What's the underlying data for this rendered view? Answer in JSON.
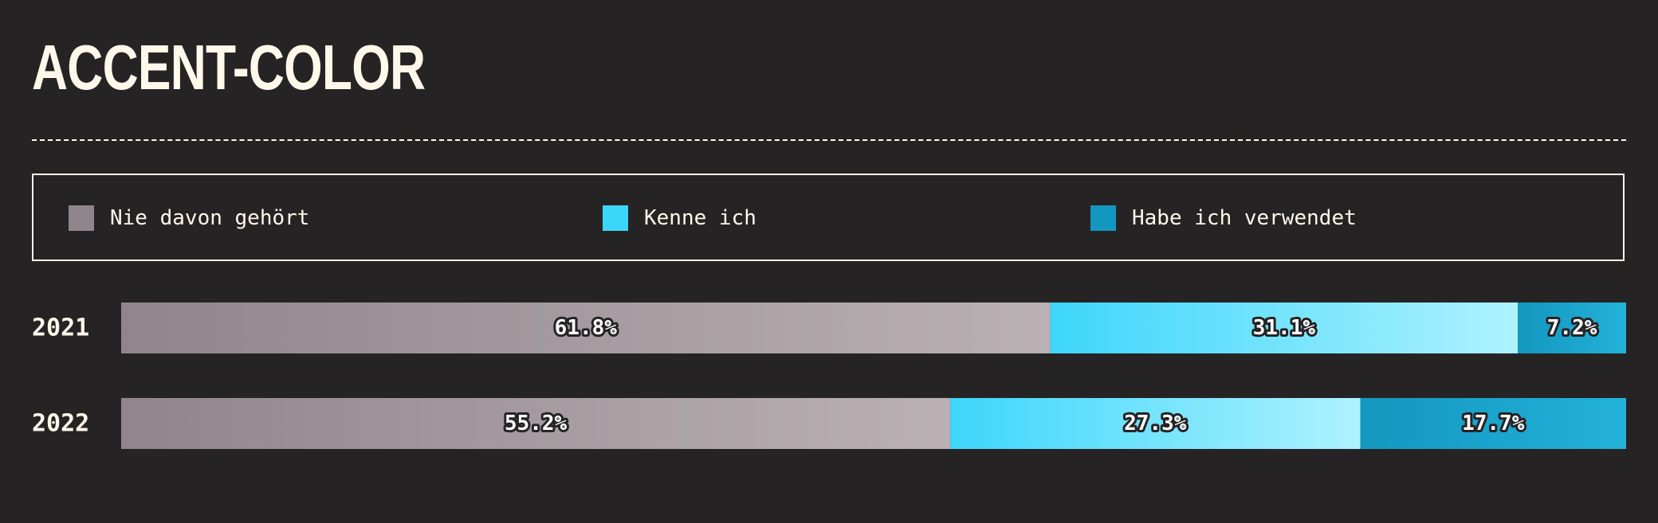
{
  "title": "ACCENT-COLOR",
  "legend": {
    "items": [
      {
        "label": "Nie davon gehört",
        "color": "#8f858b"
      },
      {
        "label": "Kenne ich",
        "color": "#3dd6fb"
      },
      {
        "label": "Habe ich verwendet",
        "color": "#1397bf"
      }
    ]
  },
  "chart_data": {
    "type": "bar",
    "orientation": "horizontal",
    "stacked": true,
    "categories": [
      "2021",
      "2022"
    ],
    "series": [
      {
        "name": "Nie davon gehört",
        "values": [
          61.8,
          55.2
        ],
        "labels": [
          "61.8%",
          "55.2%"
        ],
        "color_start": "#8f858b",
        "color_end": "#bab1b4"
      },
      {
        "name": "Kenne ich",
        "values": [
          31.1,
          27.3
        ],
        "labels": [
          "31.1%",
          "27.3%"
        ],
        "color_start": "#3dd6fb",
        "color_end": "#aef2fe"
      },
      {
        "name": "Habe ich verwendet",
        "values": [
          7.2,
          17.7
        ],
        "labels": [
          "7.2%",
          "17.7%"
        ],
        "color_start": "#1397bf",
        "color_end": "#23b1da"
      }
    ],
    "xlim": [
      0,
      100
    ],
    "legend_position": "top",
    "grid": false
  }
}
